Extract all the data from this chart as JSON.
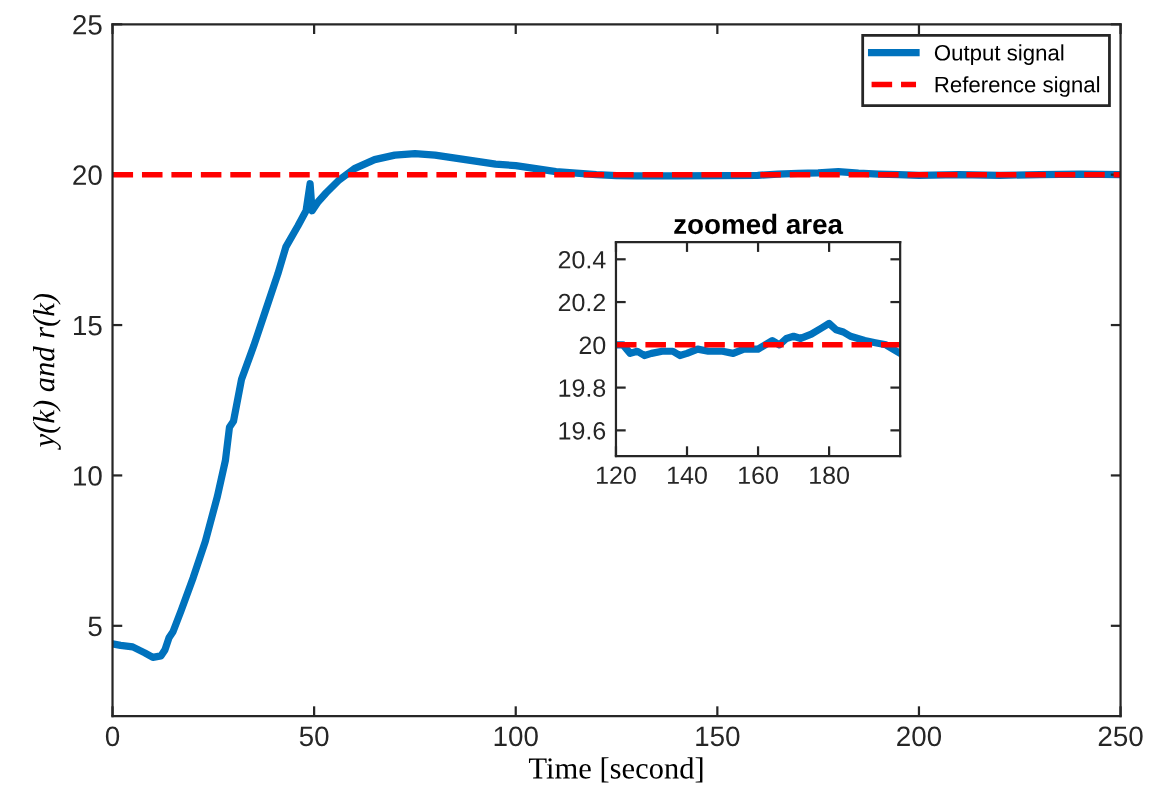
{
  "chart_data": [
    {
      "type": "line",
      "xlabel": "Time [second]",
      "ylabel": "y(k) and r(k)",
      "xlim": [
        0,
        250
      ],
      "ylim": [
        2,
        25
      ],
      "xticks": [
        0,
        50,
        100,
        150,
        200,
        250
      ],
      "yticks": [
        5,
        10,
        15,
        20,
        25
      ],
      "grid": false,
      "legend": "top right",
      "marker": "none",
      "series": [
        {
          "name": "Output signal",
          "color": "#0072bd",
          "line_style": "solid",
          "x": [
            0,
            2,
            5,
            8,
            10,
            12,
            13,
            14,
            15,
            17,
            20,
            23,
            26,
            28,
            29,
            30,
            32,
            35,
            38,
            41,
            43,
            46,
            48,
            49,
            49.5,
            51,
            53,
            56,
            60,
            65,
            70,
            75,
            80,
            85,
            90,
            95,
            100,
            105,
            110,
            115,
            120,
            125,
            130,
            140,
            150,
            160,
            165,
            170,
            175,
            180,
            185,
            190,
            195,
            200,
            210,
            220,
            230,
            240,
            250
          ],
          "values": [
            4.4,
            4.35,
            4.3,
            4.1,
            3.95,
            4.0,
            4.2,
            4.6,
            4.8,
            5.5,
            6.6,
            7.8,
            9.3,
            10.5,
            11.6,
            11.8,
            13.2,
            14.3,
            15.5,
            16.7,
            17.6,
            18.3,
            18.8,
            19.7,
            18.8,
            19.1,
            19.4,
            19.8,
            20.2,
            20.5,
            20.65,
            20.7,
            20.65,
            20.55,
            20.45,
            20.35,
            20.3,
            20.2,
            20.1,
            20.05,
            20.0,
            19.97,
            19.96,
            19.96,
            19.97,
            19.98,
            20.02,
            20.04,
            20.06,
            20.1,
            20.05,
            20.02,
            20.0,
            19.98,
            20.0,
            19.98,
            20.0,
            20.02,
            20.0
          ]
        },
        {
          "name": "Reference signal",
          "color": "#ff0000",
          "line_style": "dashed",
          "x": [
            0,
            250
          ],
          "values": [
            20,
            20
          ]
        }
      ]
    },
    {
      "type": "line",
      "title": "zoomed area",
      "xlim": [
        120,
        200
      ],
      "ylim": [
        19.48,
        20.48
      ],
      "xticks": [
        120,
        140,
        160,
        180
      ],
      "yticks": [
        19.6,
        19.8,
        20,
        20.2,
        20.4
      ],
      "grid": false,
      "legend": false,
      "marker": "none",
      "series": [
        {
          "color": "#0072bd",
          "line_style": "solid",
          "x": [
            120,
            122,
            124,
            126,
            128,
            130,
            133,
            136,
            138,
            140,
            143,
            146,
            150,
            153,
            156,
            160,
            162,
            164,
            166,
            168,
            170,
            172,
            175,
            178,
            180,
            182,
            184,
            186,
            190,
            193,
            196,
            198,
            200
          ],
          "values": [
            20.0,
            20.0,
            19.96,
            19.97,
            19.95,
            19.96,
            19.97,
            19.97,
            19.95,
            19.96,
            19.98,
            19.97,
            19.97,
            19.96,
            19.98,
            19.98,
            20.0,
            20.02,
            20.0,
            20.03,
            20.04,
            20.03,
            20.05,
            20.08,
            20.1,
            20.07,
            20.06,
            20.04,
            20.02,
            20.01,
            20.0,
            19.98,
            19.96
          ]
        },
        {
          "color": "#ff0000",
          "line_style": "dashed",
          "x": [
            120,
            200
          ],
          "values": [
            20,
            20
          ]
        }
      ]
    }
  ]
}
